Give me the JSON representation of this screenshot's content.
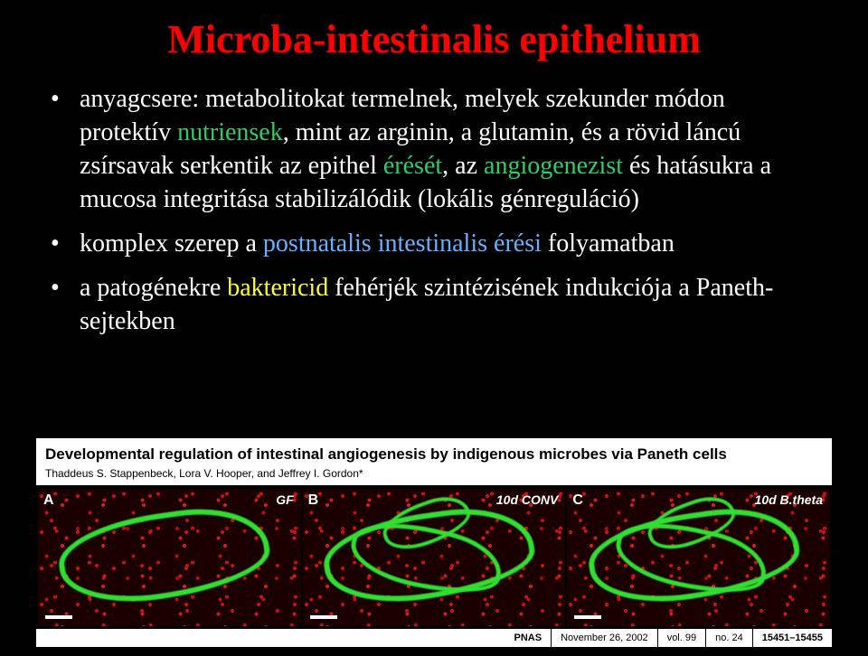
{
  "title": "Microba-intestinalis epithelium",
  "bullets": [
    {
      "pre": "anyagcsere: metabolitokat termelnek, melyek szekunder módon protektív ",
      "kw1": "nutriensek",
      "kw1_class": "kw-green",
      "mid1": ", mint az arginin, a glutamin, és a rövid láncú zsírsavak serkentik az epithel ",
      "kw2": "érését",
      "kw2_class": "kw-green",
      "mid2": ", az ",
      "kw3": "angiogenezist",
      "kw3_class": "kw-green",
      "post": " és hatásukra a mucosa integritása stabilizálódik (lokális génreguláció)"
    },
    {
      "pre": "komplex szerep a ",
      "kw1": "postnatalis intestinalis",
      "kw1_class": "kw-blue",
      "mid1": " ",
      "kw2": "érési",
      "kw2_class": "kw-blue",
      "mid2": "",
      "kw3": "",
      "kw3_class": "kw-blue",
      "post": " folyamatban"
    },
    {
      "pre": "a patogénekre ",
      "kw1": "baktericid",
      "kw1_class": "kw-yellow",
      "mid1": " fehérjék szintézisének indukciója a Paneth-sejtekben",
      "kw2": "",
      "kw2_class": "",
      "mid2": "",
      "kw3": "",
      "kw3_class": "",
      "post": ""
    }
  ],
  "figure": {
    "title": "Developmental regulation of intestinal angiogenesis by indigenous microbes via Paneth cells",
    "authors": "Thaddeus S. Stappenbeck, Lora V. Hooper, and Jeffrey I. Gordon*",
    "panels": [
      {
        "letter": "A",
        "cond": "GF",
        "sparse": true
      },
      {
        "letter": "B",
        "cond": "10d CONV",
        "sparse": false
      },
      {
        "letter": "C",
        "cond": "10d B.theta",
        "sparse": false
      }
    ],
    "journal": {
      "name": "PNAS",
      "date": "November 26, 2002",
      "vol": "vol. 99",
      "no": "no. 24",
      "pages": "15451–15455"
    }
  },
  "colors": {
    "background": "#000000",
    "title": "#ff0000",
    "text": "#ffffff",
    "kw_green": "#33cc66",
    "kw_blue": "#66b0ff",
    "kw_yellow": "#ffff33",
    "vessel_green": "#30e030",
    "speckle_red": "#d01010"
  }
}
